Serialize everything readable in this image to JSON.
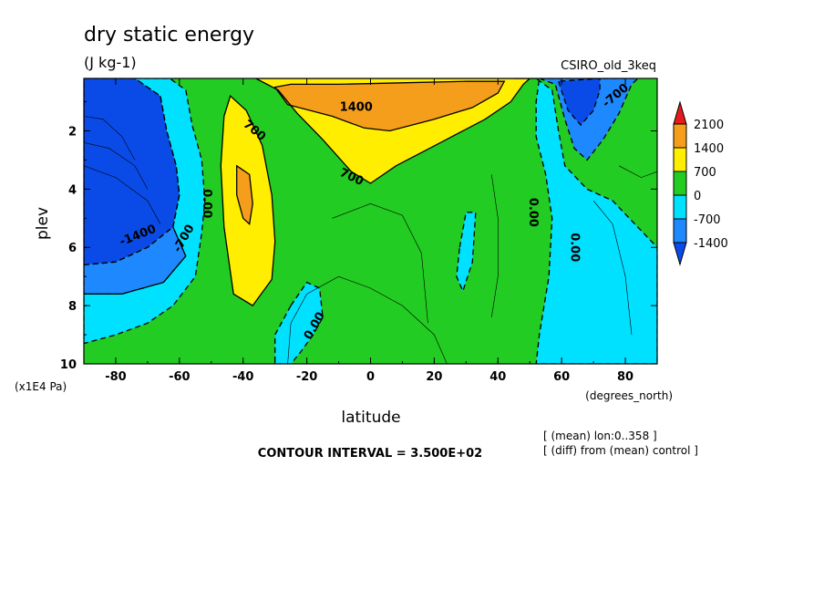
{
  "chart_data": {
    "type": "heatmap",
    "title": "dry static energy",
    "units": "(J kg-1)",
    "model": "CSIRO_old_3keq",
    "xlabel": "latitude",
    "xunits": "(degrees_north)",
    "ylabel": "plev",
    "yunits": "(x1E4 Pa)",
    "xlim": [
      -90,
      90
    ],
    "ylim": [
      10,
      0.2
    ],
    "x_ticks": [
      -80,
      -60,
      -40,
      -20,
      0,
      20,
      40,
      60,
      80
    ],
    "x_tick_labels": [
      "-80",
      "-60",
      "-40",
      "-20",
      "0",
      "20",
      "40",
      "60",
      "80"
    ],
    "y_ticks": [
      2,
      4,
      6,
      8,
      10
    ],
    "y_tick_labels": [
      "2",
      "4",
      "6",
      "8",
      "10"
    ],
    "contour_interval_text": "CONTOUR INTERVAL = 3.500E+02",
    "notes": [
      "[ (mean) lon:0..358 ]",
      "[ (diff) from (mean) control ]"
    ],
    "colorbar": {
      "levels": [
        "2100",
        "1400",
        "700",
        "0",
        "-700",
        "-1400"
      ],
      "colors": [
        "#e41a1c",
        "#f59e1b",
        "#ffee00",
        "#22cc22",
        "#00e0ff",
        "#1e88ff",
        "#0a4be8"
      ]
    },
    "contour_labels": [
      {
        "text": "1400",
        "lat": -4.5,
        "plev": 1.2
      },
      {
        "text": "700",
        "lat": -36.5,
        "plev": 2.0
      },
      {
        "text": "700",
        "lat": -6,
        "plev": 3.6
      },
      {
        "text": "0.00",
        "lat": -51.5,
        "plev": 4.5
      },
      {
        "text": "-1400",
        "lat": -73,
        "plev": 5.6
      },
      {
        "text": "-700",
        "lat": -58.5,
        "plev": 5.7
      },
      {
        "text": "0.00",
        "lat": -17.5,
        "plev": 8.7
      },
      {
        "text": "0.00",
        "lat": 51,
        "plev": 4.8
      },
      {
        "text": "0.00",
        "lat": 64,
        "plev": 6.0
      },
      {
        "text": "-700",
        "lat": 77,
        "plev": 0.8
      }
    ],
    "regions": [
      {
        "name": "sh-polar-low",
        "color": "#0a4be8",
        "points": [
          [
            -90,
            0.2
          ],
          [
            -74,
            0.2
          ],
          [
            -66,
            0.8
          ],
          [
            -64,
            2
          ],
          [
            -61,
            3.2
          ],
          [
            -60,
            4.2
          ],
          [
            -62,
            5.3
          ],
          [
            -70,
            6
          ],
          [
            -80,
            6.5
          ],
          [
            -90,
            6.6
          ]
        ]
      },
      {
        "name": "sh-polar-mid",
        "color": "#1e88ff",
        "points": [
          [
            -90,
            6.6
          ],
          [
            -80,
            6.5
          ],
          [
            -70,
            6
          ],
          [
            -62,
            5.3
          ],
          [
            -58,
            6.3
          ],
          [
            -65,
            7.2
          ],
          [
            -78,
            7.6
          ],
          [
            -90,
            7.6
          ]
        ]
      },
      {
        "name": "sh-neg-band",
        "color": "#00e0ff",
        "points": [
          [
            -74,
            0.2
          ],
          [
            -63,
            0.2
          ],
          [
            -58,
            0.6
          ],
          [
            -56,
            1.8
          ],
          [
            -53,
            3
          ],
          [
            -52,
            4.4
          ],
          [
            -53,
            5.5
          ],
          [
            -55,
            7
          ],
          [
            -62,
            8
          ],
          [
            -70,
            8.6
          ],
          [
            -80,
            9
          ],
          [
            -90,
            9.3
          ],
          [
            -90,
            7.6
          ],
          [
            -78,
            7.6
          ],
          [
            -65,
            7.2
          ],
          [
            -58,
            6.3
          ],
          [
            -62,
            5.3
          ],
          [
            -60,
            4.2
          ],
          [
            -61,
            3.2
          ],
          [
            -64,
            2
          ],
          [
            -66,
            0.8
          ]
        ]
      },
      {
        "name": "sh-mid-pos",
        "color": "#ffee00",
        "points": [
          [
            -44,
            0.8
          ],
          [
            -39,
            1.3
          ],
          [
            -34,
            2.5
          ],
          [
            -31,
            4.2
          ],
          [
            -30,
            5.8
          ],
          [
            -31,
            7.1
          ],
          [
            -37,
            8.0
          ],
          [
            -43,
            7.6
          ],
          [
            -46,
            5.3
          ],
          [
            -47,
            3.2
          ],
          [
            -46,
            1.5
          ]
        ]
      },
      {
        "name": "sh-mid-max",
        "color": "#f59e1b",
        "points": [
          [
            -42,
            3.2
          ],
          [
            -38,
            3.5
          ],
          [
            -37,
            4.5
          ],
          [
            -38,
            5.2
          ],
          [
            -40,
            5.0
          ],
          [
            -42,
            4.2
          ]
        ]
      },
      {
        "name": "upper-trop-pos",
        "color": "#ffee00",
        "points": [
          [
            -36,
            0.2
          ],
          [
            -29,
            0.6
          ],
          [
            -23,
            1.4
          ],
          [
            -15,
            2.3
          ],
          [
            -6,
            3.4
          ],
          [
            0,
            3.8
          ],
          [
            8,
            3.2
          ],
          [
            22,
            2.4
          ],
          [
            36,
            1.6
          ],
          [
            44,
            1.0
          ],
          [
            48,
            0.4
          ],
          [
            50,
            0.2
          ]
        ]
      },
      {
        "name": "upper-trop-max",
        "color": "#f59e1b",
        "points": [
          [
            -30,
            0.5
          ],
          [
            -26,
            1.1
          ],
          [
            -12,
            1.5
          ],
          [
            -2,
            1.9
          ],
          [
            6,
            2.0
          ],
          [
            20,
            1.6
          ],
          [
            32,
            1.2
          ],
          [
            40,
            0.7
          ],
          [
            42,
            0.3
          ],
          [
            30,
            0.3
          ],
          [
            10,
            0.35
          ],
          [
            -10,
            0.4
          ],
          [
            -25,
            0.4
          ]
        ]
      },
      {
        "name": "tropical-neg",
        "color": "#00e0ff",
        "points": [
          [
            -25,
            8
          ],
          [
            -20,
            7.2
          ],
          [
            -16,
            7.4
          ],
          [
            -15,
            8.4
          ],
          [
            -18,
            9
          ],
          [
            -22,
            9.6
          ],
          [
            -25,
            10
          ],
          [
            -30,
            10
          ],
          [
            -30,
            9
          ]
        ]
      },
      {
        "name": "nh-neg-blob",
        "color": "#00e0ff",
        "points": [
          [
            28,
            6.0
          ],
          [
            30,
            4.8
          ],
          [
            33,
            4.8
          ],
          [
            32,
            6.5
          ],
          [
            29,
            7.5
          ],
          [
            27,
            7.0
          ]
        ]
      },
      {
        "name": "nh-neg-column",
        "color": "#00e0ff",
        "points": [
          [
            45,
            0.2
          ],
          [
            53,
            0.2
          ],
          [
            52,
            1.0
          ],
          [
            52,
            2.2
          ],
          [
            55,
            3.5
          ],
          [
            57,
            5.0
          ],
          [
            56,
            7
          ],
          [
            53,
            9
          ],
          [
            52,
            10
          ],
          [
            90,
            10
          ],
          [
            90,
            6
          ],
          [
            83,
            5.2
          ],
          [
            76,
            4.4
          ],
          [
            68,
            4.0
          ],
          [
            61,
            3.2
          ],
          [
            59,
            2.0
          ],
          [
            57,
            0.6
          ],
          [
            52,
            0.2
          ]
        ]
      },
      {
        "name": "nh-polar-mid",
        "color": "#1e88ff",
        "points": [
          [
            53,
            0.2
          ],
          [
            58,
            0.4
          ],
          [
            61,
            1.6
          ],
          [
            64,
            2.6
          ],
          [
            68,
            3.0
          ],
          [
            73,
            2.3
          ],
          [
            78,
            1.4
          ],
          [
            82,
            0.4
          ],
          [
            84,
            0.2
          ]
        ]
      },
      {
        "name": "nh-polar-low",
        "color": "#0a4be8",
        "points": [
          [
            59,
            0.3
          ],
          [
            62,
            1.3
          ],
          [
            66,
            1.8
          ],
          [
            70,
            1.3
          ],
          [
            72,
            0.6
          ],
          [
            72,
            0.2
          ]
        ]
      }
    ]
  }
}
